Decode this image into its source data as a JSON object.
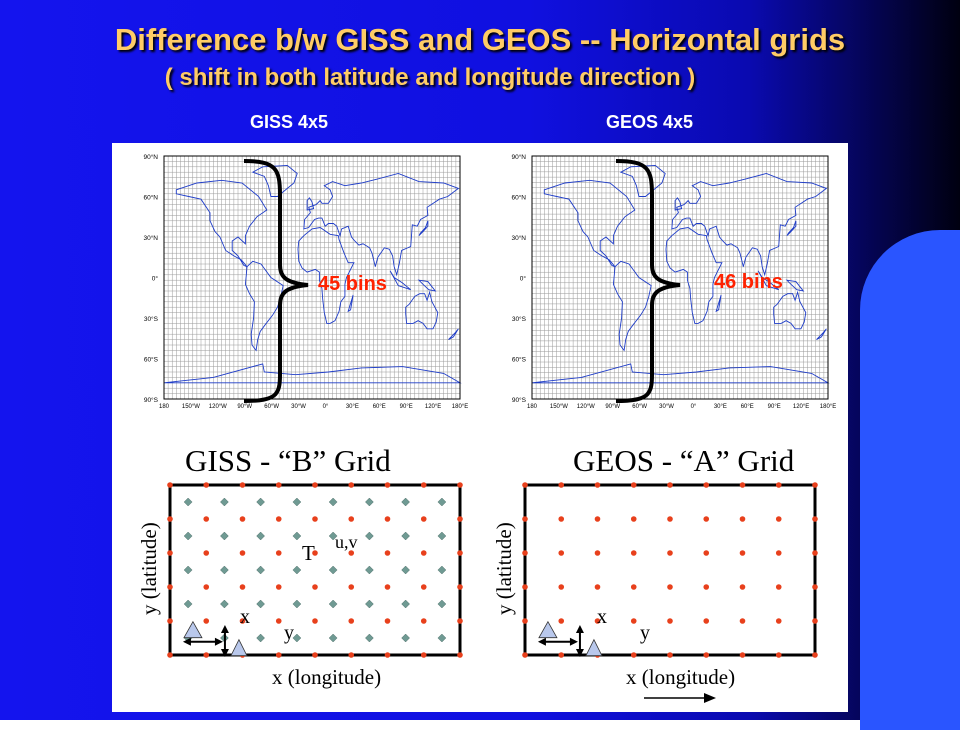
{
  "slide": {
    "title": "Difference b/w GISS and GEOS -- Horizontal grids",
    "subtitle": "( shift in both latitude and longitude direction )"
  },
  "maps": {
    "left_label": "GISS 4x5",
    "right_label": "GEOS 4x5",
    "left_bins": "45 bins",
    "right_bins": "46 bins",
    "lat_ticks": [
      "90°N",
      "60°N",
      "30°N",
      "0°",
      "30°S",
      "60°S",
      "90°S"
    ],
    "lon_ticks": [
      "180",
      "150°W",
      "120°W",
      "90°W",
      "60°W",
      "30°W",
      "0°",
      "30°E",
      "60°E",
      "90°E",
      "120°E",
      "180°E"
    ]
  },
  "diagrams": {
    "left_title": "GISS - “B” Grid",
    "right_title": "GEOS - “A” Grid",
    "y_axis_label": "y (latitude)",
    "x_axis_label": "x (longitude)",
    "t_label": "T",
    "uv_label": "u,v",
    "dx_label": "x",
    "dy_label": "y"
  },
  "colors": {
    "title": "#ffcc66",
    "bins": "#ff2200",
    "coast": "#1e3cc8",
    "t_point": "#e8401c",
    "uv_point": "#6f9a93",
    "triangle": "#b9c8ec"
  }
}
